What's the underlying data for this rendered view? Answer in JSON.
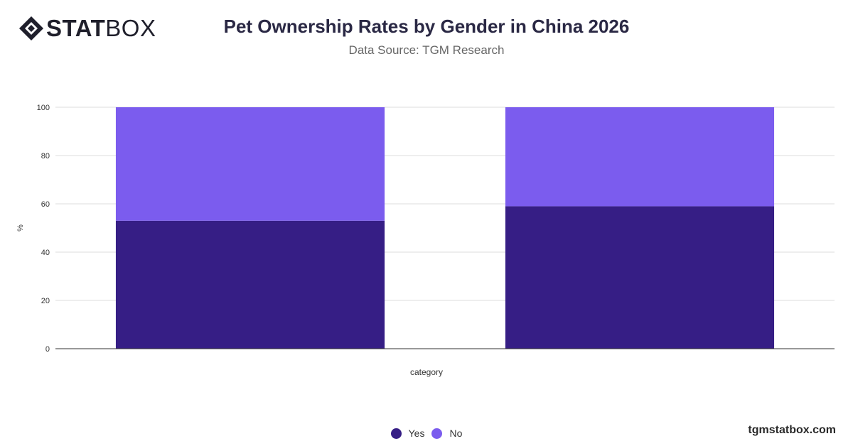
{
  "brand": {
    "logo_bold": "STAT",
    "logo_light": "BOX",
    "watermark": "tgmstatbox.com"
  },
  "header": {
    "title": "Pet Ownership Rates by Gender in China 2026",
    "subtitle": "Data Source: TGM Research"
  },
  "colors": {
    "yes": "#361e85",
    "no": "#7b5cee",
    "grid": "#dddddd",
    "axis": "#333333"
  },
  "icons": {
    "logo": "diamond-logo-icon"
  },
  "chart_data": {
    "type": "bar",
    "stacked": true,
    "title": "Pet Ownership Rates by Gender in China 2026",
    "subtitle": "Data Source: TGM Research",
    "categories": [
      "",
      ""
    ],
    "series": [
      {
        "name": "Yes",
        "values": [
          53,
          59
        ]
      },
      {
        "name": "No",
        "values": [
          47,
          41
        ]
      }
    ],
    "xlabel": "category",
    "ylabel": "%",
    "ylim": [
      0,
      100
    ],
    "yticks": [
      0,
      20,
      40,
      60,
      80,
      100
    ],
    "grid": true,
    "legend": "bottom-center"
  }
}
